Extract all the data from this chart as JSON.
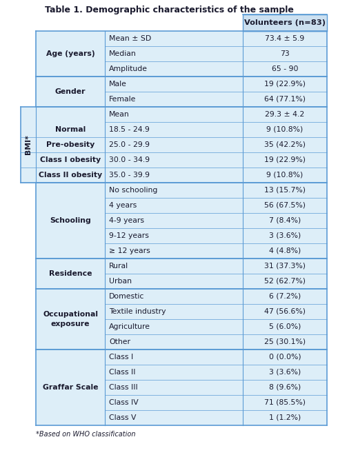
{
  "title": "Table 1. Demographic characteristics of the sample",
  "header": "Volunteers (n=83)",
  "cell_bg": "#ddeef8",
  "header_bg": "#cce0f0",
  "white_bg": "#ffffff",
  "border_color": "#5b9bd5",
  "text_color": "#1a1a2e",
  "bmi_label": "BMI*",
  "footnote": "*Based on WHO classification",
  "sections": [
    {
      "name": "age",
      "group_label": "Age (years)",
      "has_bmi_col": false,
      "rows": [
        {
          "subgroup": "",
          "label": "Mean ± SD",
          "value": "73.4 ± 5.9"
        },
        {
          "subgroup": "",
          "label": "Median",
          "value": "73"
        },
        {
          "subgroup": "",
          "label": "Amplitude",
          "value": "65 - 90"
        }
      ]
    },
    {
      "name": "gender",
      "group_label": "Gender",
      "has_bmi_col": false,
      "rows": [
        {
          "subgroup": "",
          "label": "Male",
          "value": "19 (22.9%)"
        },
        {
          "subgroup": "",
          "label": "Female",
          "value": "64 (77.1%)"
        }
      ]
    },
    {
      "name": "bmi",
      "group_label": "",
      "has_bmi_col": true,
      "rows": [
        {
          "subgroup": "",
          "label": "Mean",
          "value": "29.3 ± 4.2"
        },
        {
          "subgroup": "Normal",
          "label": "18.5 - 24.9",
          "value": "9 (10.8%)"
        },
        {
          "subgroup": "Pre-obesity",
          "label": "25.0 - 29.9",
          "value": "35 (42.2%)"
        },
        {
          "subgroup": "Class I obesity",
          "label": "30.0 - 34.9",
          "value": "19 (22.9%)"
        },
        {
          "subgroup": "Class II obesity",
          "label": "35.0 - 39.9",
          "value": "9 (10.8%)"
        }
      ]
    },
    {
      "name": "schooling",
      "group_label": "Schooling",
      "has_bmi_col": false,
      "rows": [
        {
          "subgroup": "",
          "label": "No schooling",
          "value": "13 (15.7%)"
        },
        {
          "subgroup": "",
          "label": "4 years",
          "value": "56 (67.5%)"
        },
        {
          "subgroup": "",
          "label": "4-9 years",
          "value": "7 (8.4%)"
        },
        {
          "subgroup": "",
          "label": "9-12 years",
          "value": "3 (3.6%)"
        },
        {
          "subgroup": "",
          "label": "≥ 12 years",
          "value": "4 (4.8%)"
        }
      ]
    },
    {
      "name": "residence",
      "group_label": "Residence",
      "has_bmi_col": false,
      "rows": [
        {
          "subgroup": "",
          "label": "Rural",
          "value": "31 (37.3%)"
        },
        {
          "subgroup": "",
          "label": "Urban",
          "value": "52 (62.7%)"
        }
      ]
    },
    {
      "name": "occup",
      "group_label": "Occupational\nexposure",
      "has_bmi_col": false,
      "rows": [
        {
          "subgroup": "",
          "label": "Domestic",
          "value": "6 (7.2%)"
        },
        {
          "subgroup": "",
          "label": "Textile industry",
          "value": "47 (56.6%)"
        },
        {
          "subgroup": "",
          "label": "Agriculture",
          "value": "5 (6.0%)"
        },
        {
          "subgroup": "",
          "label": "Other",
          "value": "25 (30.1%)"
        }
      ]
    },
    {
      "name": "graffar",
      "group_label": "Graffar Scale",
      "has_bmi_col": false,
      "rows": [
        {
          "subgroup": "",
          "label": "Class I",
          "value": "0 (0.0%)"
        },
        {
          "subgroup": "",
          "label": "Class II",
          "value": "3 (3.6%)"
        },
        {
          "subgroup": "",
          "label": "Class III",
          "value": "8 (9.6%)"
        },
        {
          "subgroup": "",
          "label": "Class IV",
          "value": "71 (85.5%)"
        },
        {
          "subgroup": "",
          "label": "Class V",
          "value": "1 (1.2%)"
        }
      ]
    }
  ],
  "font_size": 7.8,
  "group_font_size": 7.8,
  "header_font_size": 8.2
}
